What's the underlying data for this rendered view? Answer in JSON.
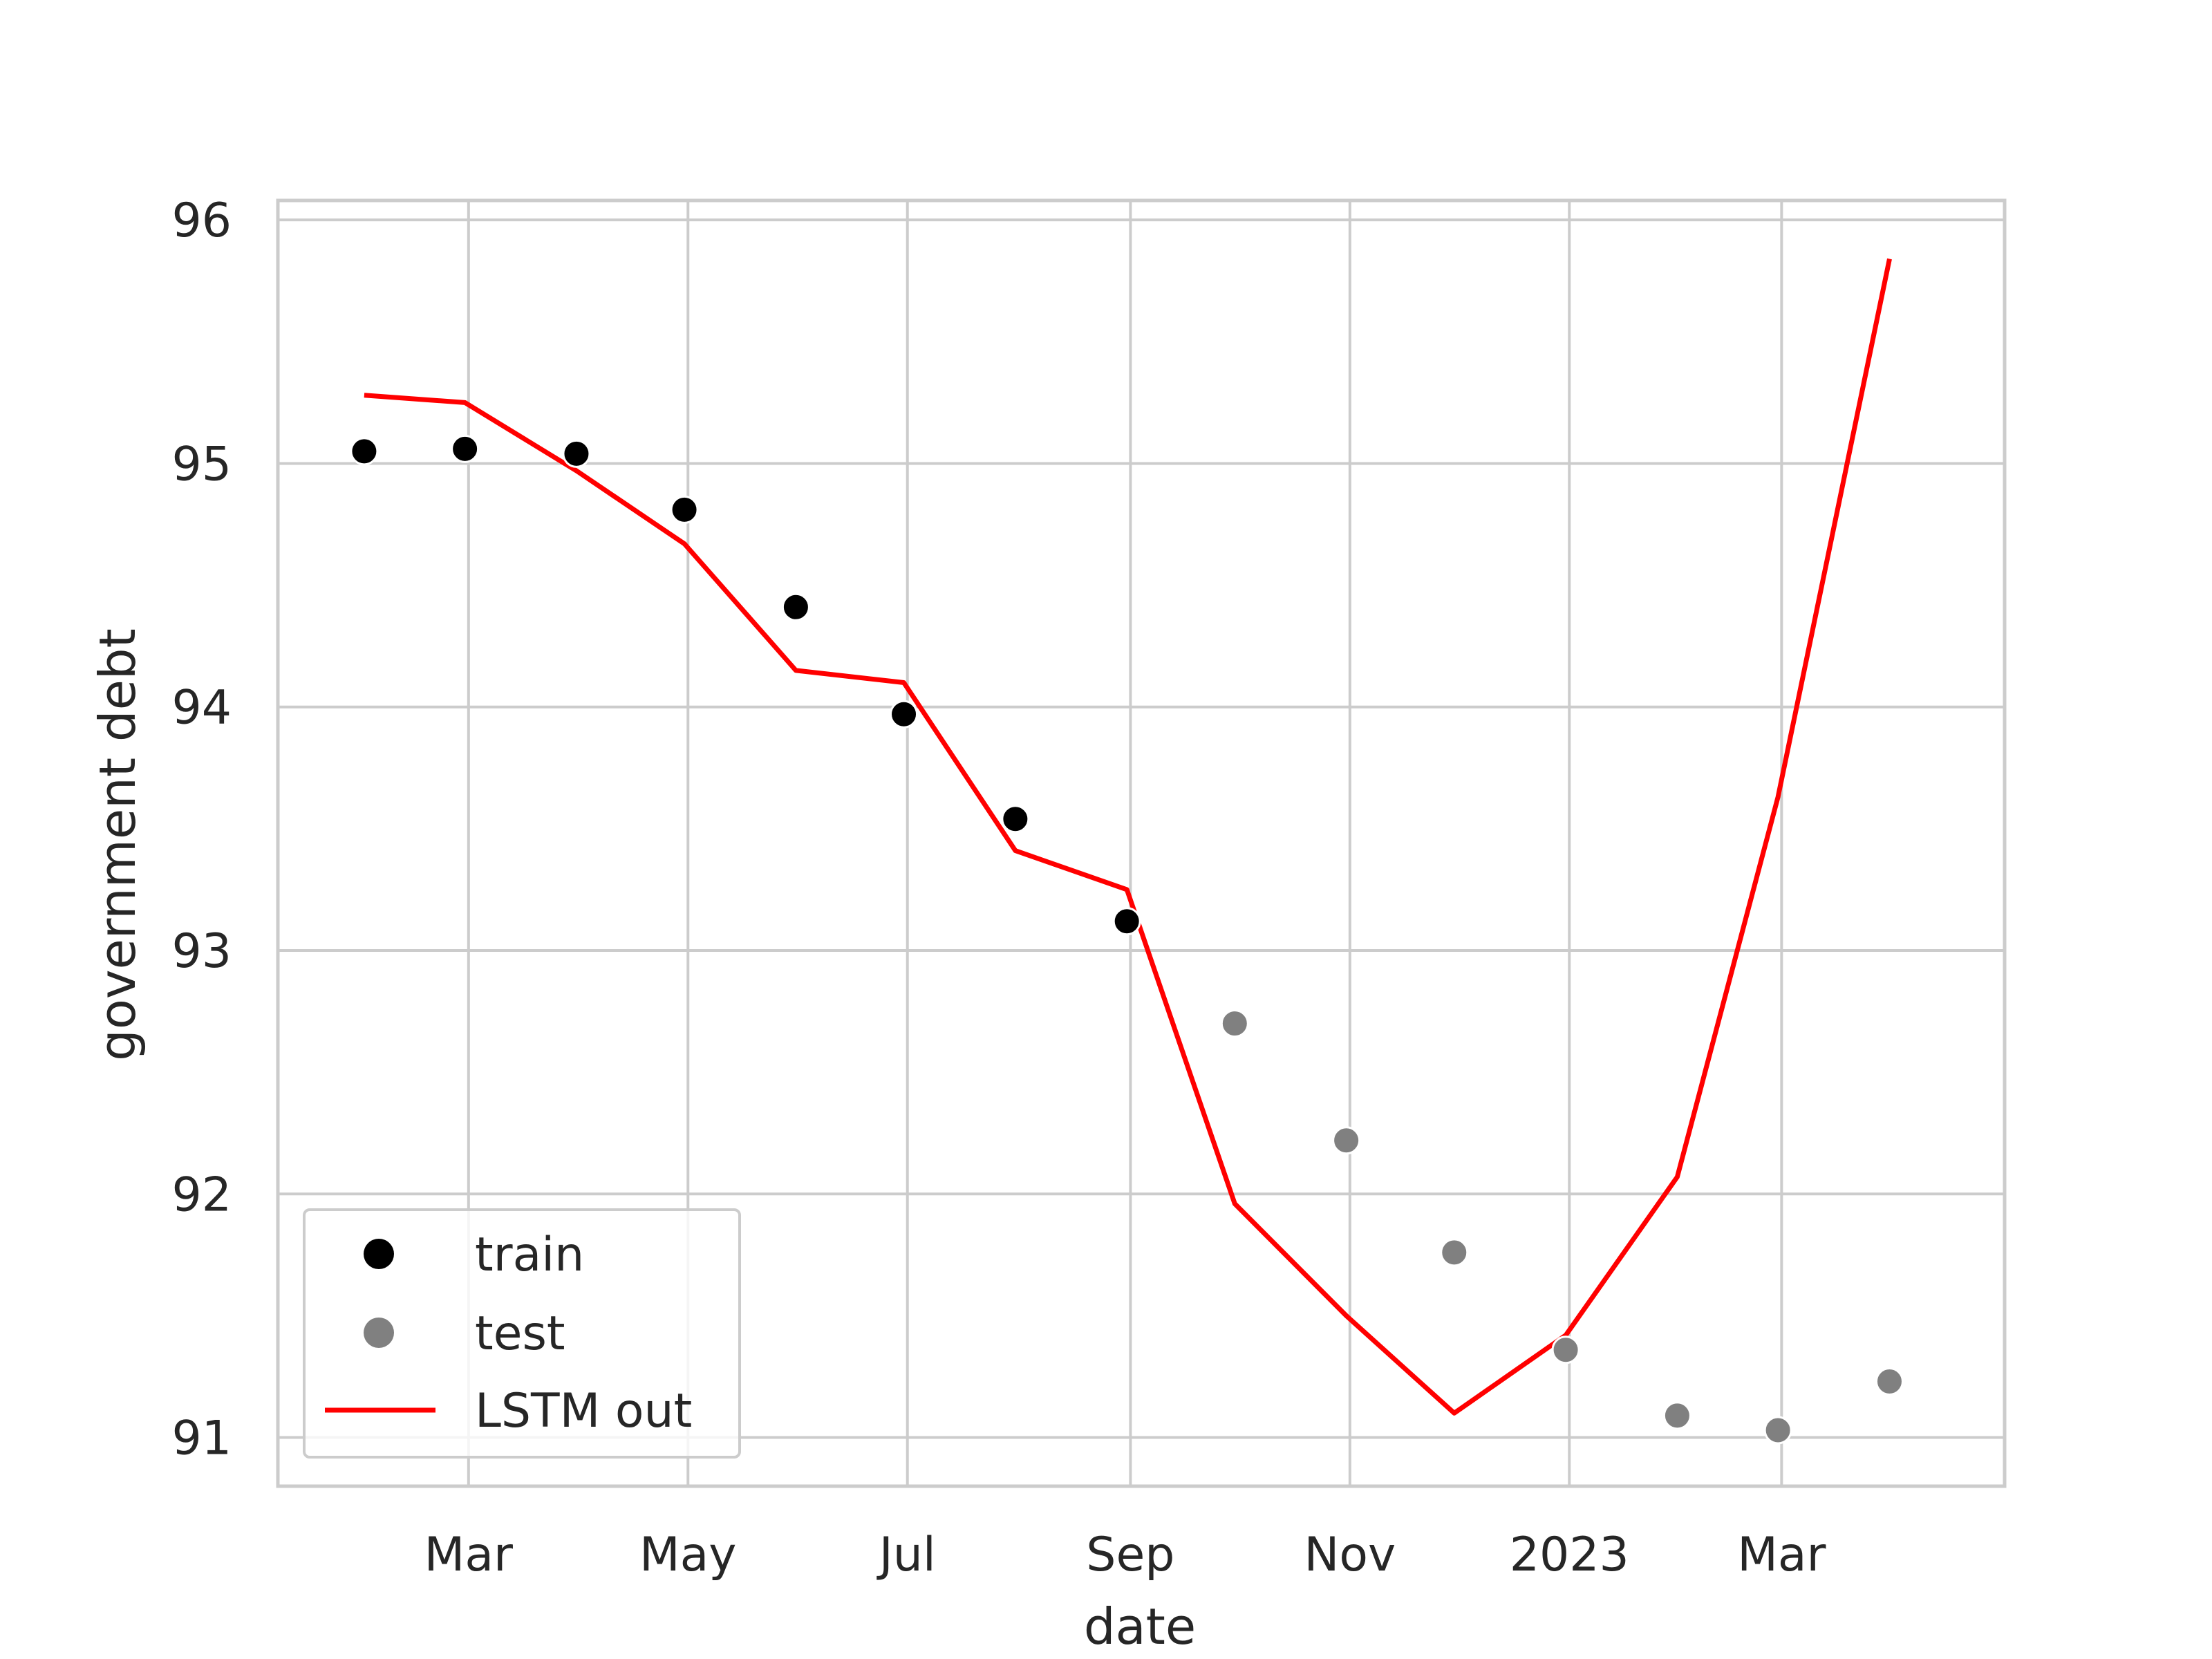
{
  "chart_data": {
    "type": "scatter",
    "xlabel": "date",
    "ylabel": "government debt",
    "x_tick_labels": [
      {
        "date": "2022-03-01",
        "label": "Mar"
      },
      {
        "date": "2022-05-01",
        "label": "May"
      },
      {
        "date": "2022-07-01",
        "label": "Jul"
      },
      {
        "date": "2022-09-01",
        "label": "Sep"
      },
      {
        "date": "2022-11-01",
        "label": "Nov"
      },
      {
        "date": "2023-01-01",
        "label": "2023"
      },
      {
        "date": "2023-03-01",
        "label": "Mar"
      }
    ],
    "xlim": [
      "2022-01-07",
      "2023-05-02"
    ],
    "ylim": [
      90.8,
      96.08
    ],
    "y_ticks": [
      91,
      92,
      93,
      94,
      95,
      96
    ],
    "grid": true,
    "legend_position": "lower-left",
    "series": [
      {
        "name": "train",
        "kind": "scatter",
        "color": "#000000",
        "points": [
          {
            "x": "2022-01-31",
            "y": 95.05
          },
          {
            "x": "2022-02-28",
            "y": 95.06
          },
          {
            "x": "2022-03-31",
            "y": 95.04
          },
          {
            "x": "2022-04-30",
            "y": 94.81
          },
          {
            "x": "2022-05-31",
            "y": 94.41
          },
          {
            "x": "2022-06-30",
            "y": 93.97
          },
          {
            "x": "2022-07-31",
            "y": 93.54
          },
          {
            "x": "2022-08-31",
            "y": 93.12
          }
        ]
      },
      {
        "name": "test",
        "kind": "scatter",
        "color": "#808080",
        "points": [
          {
            "x": "2022-09-30",
            "y": 92.7
          },
          {
            "x": "2022-10-31",
            "y": 92.22
          },
          {
            "x": "2022-11-30",
            "y": 91.76
          },
          {
            "x": "2022-12-31",
            "y": 91.36
          },
          {
            "x": "2023-01-31",
            "y": 91.09
          },
          {
            "x": "2023-02-28",
            "y": 91.03
          },
          {
            "x": "2023-03-31",
            "y": 91.23
          }
        ]
      },
      {
        "name": "LSTM out",
        "kind": "line",
        "color": "#ff0000",
        "points": [
          {
            "x": "2022-01-31",
            "y": 95.28
          },
          {
            "x": "2022-02-28",
            "y": 95.25
          },
          {
            "x": "2022-03-31",
            "y": 94.97
          },
          {
            "x": "2022-04-30",
            "y": 94.67
          },
          {
            "x": "2022-05-31",
            "y": 94.15
          },
          {
            "x": "2022-06-30",
            "y": 94.1
          },
          {
            "x": "2022-07-31",
            "y": 93.41
          },
          {
            "x": "2022-08-31",
            "y": 93.25
          },
          {
            "x": "2022-09-30",
            "y": 91.96
          },
          {
            "x": "2022-10-31",
            "y": 91.5
          },
          {
            "x": "2022-11-30",
            "y": 91.1
          },
          {
            "x": "2022-12-31",
            "y": 91.42
          },
          {
            "x": "2023-01-31",
            "y": 92.07
          },
          {
            "x": "2023-02-28",
            "y": 93.63
          },
          {
            "x": "2023-03-31",
            "y": 95.84
          }
        ]
      }
    ]
  }
}
